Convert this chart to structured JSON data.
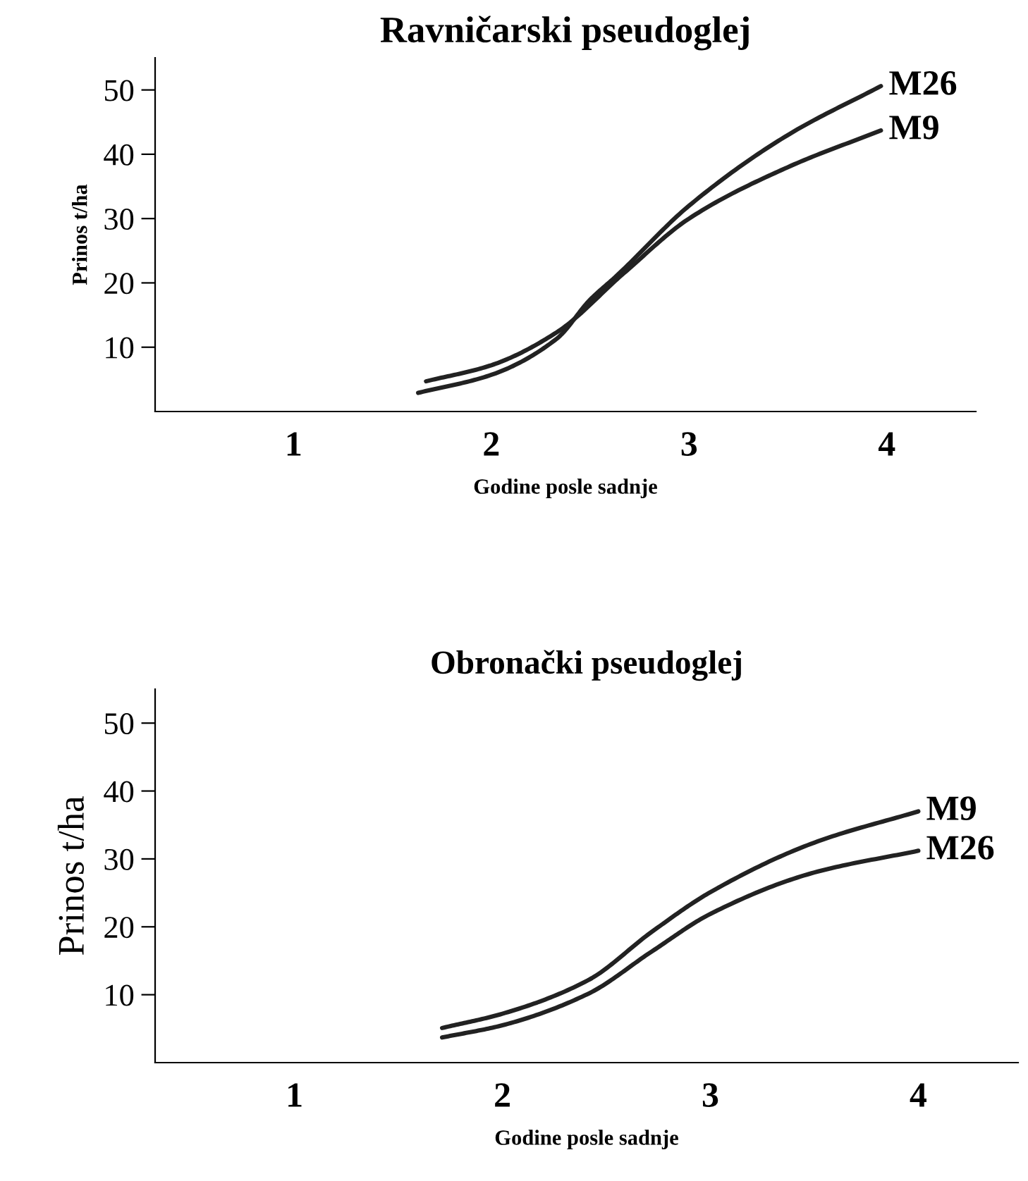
{
  "chart_data": [
    {
      "type": "line",
      "title": "Ravničarski pseudoglej",
      "xlabel": "Godine posle sadnje",
      "ylabel": "Prinos t/ha",
      "xlim": [
        0.3,
        4.45
      ],
      "ylim": [
        0,
        55
      ],
      "xticks": [
        1,
        2,
        3,
        4
      ],
      "yticks": [
        10,
        20,
        30,
        40,
        50
      ],
      "grid": false,
      "legend": false,
      "marker": "none",
      "line_style": "solid",
      "series": [
        {
          "name": "M26",
          "color": "#222222",
          "x": [
            1.63,
            2.0,
            2.33,
            2.5,
            2.63,
            3.0,
            3.5,
            3.97
          ],
          "values": [
            2.9,
            5.7,
            11.3,
            17.4,
            21,
            32,
            43,
            50.6
          ]
        },
        {
          "name": "M9",
          "color": "#222222",
          "x": [
            1.67,
            2.0,
            2.33,
            2.67,
            3.0,
            3.5,
            3.97
          ],
          "values": [
            4.7,
            7.2,
            12.3,
            21.5,
            30,
            38,
            43.7
          ]
        }
      ]
    },
    {
      "type": "line",
      "title": "Obronački pseudoglej",
      "xlabel": "Godine posle sadnje",
      "ylabel": "Prinos t/ha",
      "xlim": [
        0.33,
        4.48
      ],
      "ylim": [
        0,
        55
      ],
      "xticks": [
        1,
        2,
        3,
        4
      ],
      "yticks": [
        10,
        20,
        30,
        40,
        50
      ],
      "grid": false,
      "legend": false,
      "marker": "none",
      "line_style": "solid",
      "series": [
        {
          "name": "M9",
          "color": "#222222",
          "x": [
            1.71,
            2.0,
            2.41,
            2.72,
            3.0,
            3.5,
            4.0
          ],
          "values": [
            5.1,
            7.2,
            12.1,
            19.3,
            25.1,
            32.4,
            37
          ]
        },
        {
          "name": "M26",
          "color": "#222222",
          "x": [
            1.71,
            2.0,
            2.41,
            2.72,
            3.0,
            3.5,
            4.0
          ],
          "values": [
            3.7,
            5.5,
            10.1,
            16.4,
            21.9,
            28,
            31.2
          ]
        }
      ]
    }
  ]
}
